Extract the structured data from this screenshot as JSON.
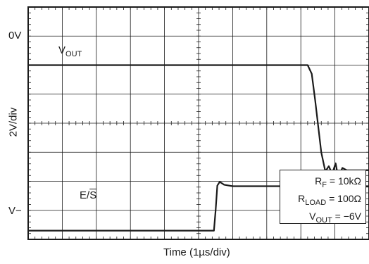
{
  "chart_data": {
    "type": "line",
    "title": "",
    "xlabel": "Time (1µs/div)",
    "ylabel": "2V/div",
    "y_markers": [
      "0V",
      "V−"
    ],
    "divisions": {
      "x": 10,
      "y": 8
    },
    "grid": true,
    "series": [
      {
        "name": "VOUT",
        "label_main": "V",
        "label_sub": "OUT",
        "color": "#1a1a1a",
        "points": [
          [
            0,
            6.0
          ],
          [
            8.2,
            6.0
          ],
          [
            8.32,
            5.7
          ],
          [
            8.42,
            4.8
          ],
          [
            8.6,
            3.0
          ],
          [
            8.72,
            2.34
          ],
          [
            8.82,
            2.52
          ],
          [
            8.92,
            2.26
          ],
          [
            9.02,
            2.62
          ],
          [
            9.1,
            2.12
          ],
          [
            9.22,
            2.46
          ],
          [
            9.35,
            2.38
          ],
          [
            10.0,
            2.38
          ]
        ]
      },
      {
        "name": "E/S",
        "label_main": "E/",
        "label_over": "S",
        "color": "#1a1a1a",
        "points": [
          [
            0,
            0.3
          ],
          [
            5.45,
            0.3
          ],
          [
            5.5,
            1.0
          ],
          [
            5.55,
            1.85
          ],
          [
            5.62,
            1.98
          ],
          [
            5.75,
            1.88
          ],
          [
            6.0,
            1.83
          ],
          [
            10.0,
            1.83
          ]
        ]
      }
    ]
  },
  "legend": {
    "rf": {
      "main": "R",
      "sub": "F",
      "value": " = 10kΩ"
    },
    "rload": {
      "main": "R",
      "sub": "LOAD",
      "value": " = 100Ω"
    },
    "vout": {
      "main": "V",
      "sub": "OUT",
      "value": " = −6V"
    }
  }
}
